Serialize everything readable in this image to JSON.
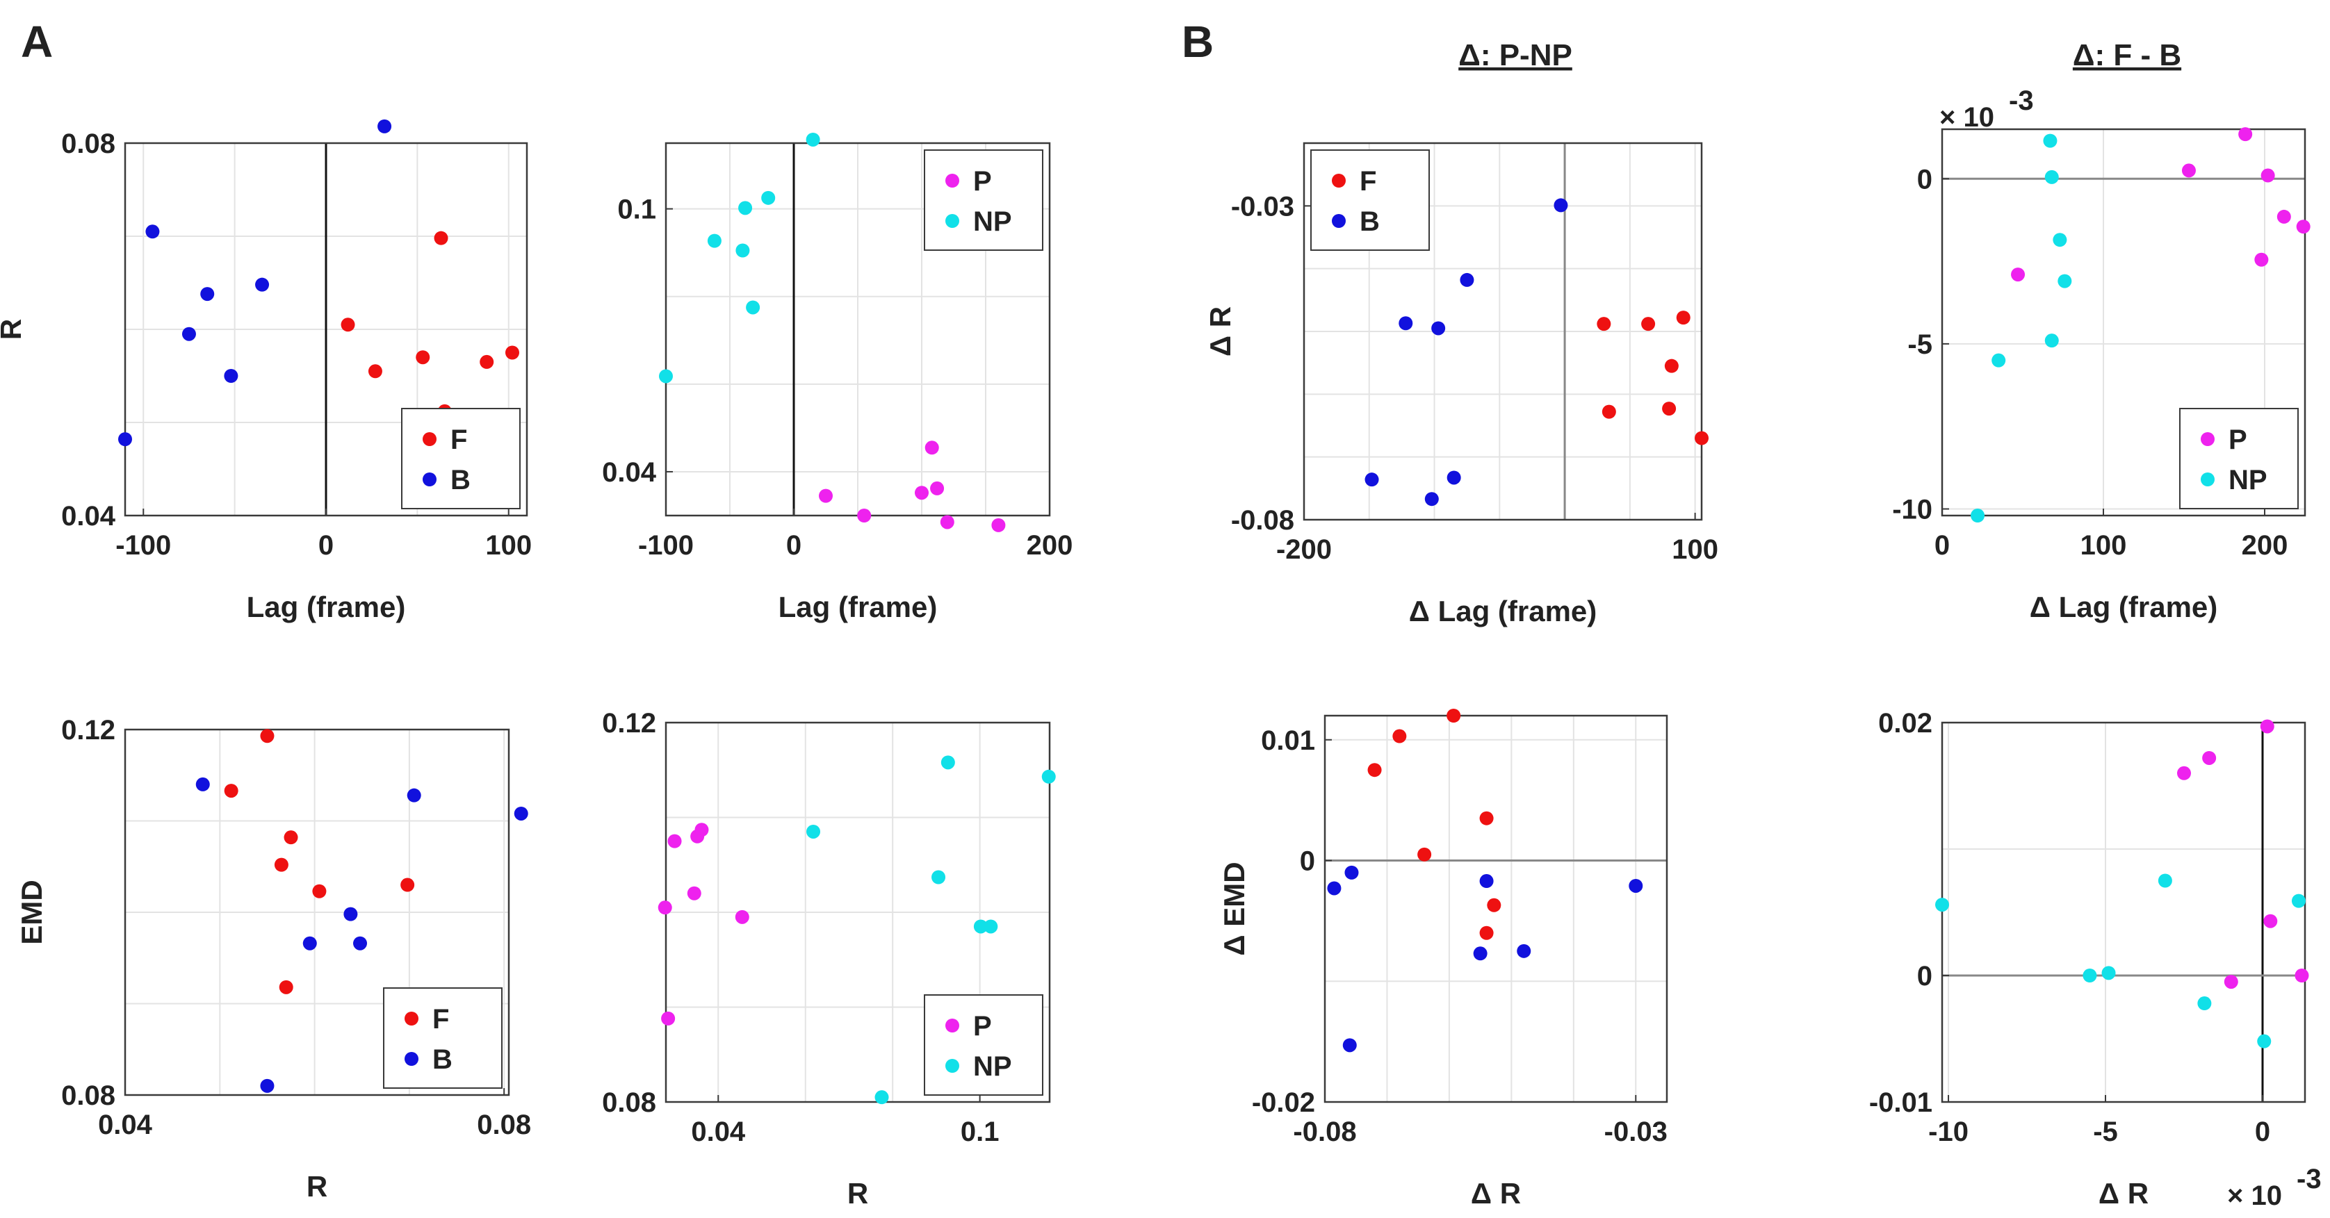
{
  "panel_letters": [
    "A",
    "B"
  ],
  "group_titles": [
    "Δ: P-NP",
    "Δ: F - B"
  ],
  "colors": {
    "F": "#ee1111",
    "B": "#1111dd",
    "P": "#ee22ee",
    "NP": "#11e0e8"
  },
  "chart_data": [
    {
      "id": "a1",
      "type": "scatter",
      "xlabel": "Lag (frame)",
      "ylabel": "R",
      "xlim": [
        -110,
        110
      ],
      "ylim": [
        0.04,
        0.08
      ],
      "xticks": [
        -100,
        0,
        100
      ],
      "xtick_labels": [
        "-100",
        "0",
        "100"
      ],
      "yticks": [
        0.04,
        0.08
      ],
      "ytick_labels": [
        "0.04",
        "0.08"
      ],
      "xgrid": [
        -100,
        -50,
        0,
        50,
        100
      ],
      "ygrid": [
        0.05,
        0.06,
        0.07,
        0.08
      ],
      "vline": 0,
      "legend_position": "bottom-right",
      "series": [
        {
          "name": "F",
          "color": "#ee1111",
          "x": [
            12,
            27,
            53,
            63,
            65,
            88,
            102
          ],
          "y": [
            0.0605,
            0.0555,
            0.057,
            0.0698,
            0.0512,
            0.0565,
            0.0575
          ]
        },
        {
          "name": "B",
          "color": "#1111dd",
          "x": [
            -110,
            -95,
            -75,
            -65,
            -52,
            -35,
            32
          ],
          "y": [
            0.0482,
            0.0705,
            0.0595,
            0.0638,
            0.055,
            0.0648,
            0.0818
          ]
        }
      ]
    },
    {
      "id": "a2",
      "type": "scatter",
      "xlabel": "Lag (frame)",
      "ylabel": "",
      "xlim": [
        -100,
        200
      ],
      "ylim": [
        0.03,
        0.115
      ],
      "xticks": [
        -100,
        0,
        200
      ],
      "xtick_labels": [
        "-100",
        "0",
        "200"
      ],
      "yticks": [
        0.04,
        0.1
      ],
      "ytick_labels": [
        "0.04",
        "0.1"
      ],
      "xgrid": [
        -100,
        -50,
        0,
        50,
        100,
        150,
        200
      ],
      "ygrid": [
        0.04,
        0.06,
        0.08,
        0.1
      ],
      "vline": 0,
      "legend_position": "top-right",
      "series": [
        {
          "name": "P",
          "color": "#ee22ee",
          "x": [
            25,
            55,
            100,
            108,
            112,
            120,
            160
          ],
          "y": [
            0.0345,
            0.03,
            0.0352,
            0.0455,
            0.0362,
            0.0285,
            0.0278
          ]
        },
        {
          "name": "NP",
          "color": "#11e0e8",
          "x": [
            -100,
            -62,
            -40,
            -38,
            -32,
            -20,
            15
          ],
          "y": [
            0.0618,
            0.0927,
            0.0905,
            0.1002,
            0.0775,
            0.1025,
            0.1158
          ]
        }
      ]
    },
    {
      "id": "a3",
      "type": "scatter",
      "xlabel": "R",
      "ylabel": "EMD",
      "xlim": [
        0.04,
        0.0805
      ],
      "ylim": [
        0.08,
        0.12
      ],
      "xticks": [
        0.04,
        0.08
      ],
      "xtick_labels": [
        "0.04",
        "0.08"
      ],
      "yticks": [
        0.08,
        0.12
      ],
      "ytick_labels": [
        "0.08",
        "0.12"
      ],
      "xgrid": [
        0.05,
        0.06,
        0.07,
        0.08
      ],
      "ygrid": [
        0.09,
        0.1,
        0.11,
        0.12
      ],
      "legend_position": "bottom-right",
      "series": [
        {
          "name": "F",
          "color": "#ee1111",
          "x": [
            0.0512,
            0.055,
            0.0565,
            0.0575,
            0.057,
            0.0605,
            0.0698
          ],
          "y": [
            0.1133,
            0.1193,
            0.1052,
            0.1082,
            0.0918,
            0.1023,
            0.103
          ]
        },
        {
          "name": "B",
          "color": "#1111dd",
          "x": [
            0.0482,
            0.055,
            0.0595,
            0.0638,
            0.0648,
            0.0705,
            0.0818
          ],
          "y": [
            0.114,
            0.081,
            0.0966,
            0.0998,
            0.0966,
            0.1128,
            0.1108
          ]
        }
      ]
    },
    {
      "id": "a4",
      "type": "scatter",
      "xlabel": "R",
      "ylabel": "",
      "xlim": [
        0.028,
        0.116
      ],
      "ylim": [
        0.08,
        0.12
      ],
      "xticks": [
        0.04,
        0.1
      ],
      "xtick_labels": [
        "0.04",
        "0.1"
      ],
      "yticks": [
        0.08,
        0.12
      ],
      "ytick_labels": [
        "0.08",
        "0.12"
      ],
      "xgrid": [
        0.04,
        0.06,
        0.08,
        0.1
      ],
      "ygrid": [
        0.09,
        0.1,
        0.11,
        0.12
      ],
      "legend_position": "bottom-right",
      "series": [
        {
          "name": "P",
          "color": "#ee22ee",
          "x": [
            0.0278,
            0.0285,
            0.03,
            0.0345,
            0.0352,
            0.0362,
            0.0455
          ],
          "y": [
            0.1005,
            0.0888,
            0.1075,
            0.102,
            0.108,
            0.1087,
            0.0995
          ]
        },
        {
          "name": "NP",
          "color": "#11e0e8",
          "x": [
            0.0618,
            0.0775,
            0.0905,
            0.0927,
            0.1002,
            0.1025,
            0.1158
          ],
          "y": [
            0.1085,
            0.0805,
            0.1037,
            0.1158,
            0.0985,
            0.0985,
            0.1143
          ]
        }
      ]
    },
    {
      "id": "b1",
      "type": "scatter",
      "xlabel": "Δ Lag (frame)",
      "ylabel": "Δ R",
      "xlim": [
        -200,
        105
      ],
      "ylim": [
        -0.08,
        -0.02
      ],
      "xticks": [
        -200,
        100
      ],
      "xtick_labels": [
        "-200",
        "100"
      ],
      "yticks": [
        -0.08,
        -0.03
      ],
      "ytick_labels": [
        "-0.08",
        "-0.03"
      ],
      "xgrid": [
        -200,
        -150,
        -100,
        -50,
        0,
        50,
        100
      ],
      "ygrid": [
        -0.07,
        -0.06,
        -0.05,
        -0.04,
        -0.03
      ],
      "vline": 0,
      "legend_position": "top-left",
      "series": [
        {
          "name": "F",
          "color": "#ee1111",
          "x": [
            30,
            34,
            64,
            80,
            82,
            91,
            105
          ],
          "y": [
            -0.0488,
            -0.0628,
            -0.0488,
            -0.0623,
            -0.0555,
            -0.0478,
            -0.067
          ]
        },
        {
          "name": "B",
          "color": "#1111dd",
          "x": [
            -148,
            -122,
            -102,
            -97,
            -85,
            -75,
            -3
          ],
          "y": [
            -0.0736,
            -0.0487,
            -0.0767,
            -0.0495,
            -0.0733,
            -0.0418,
            -0.0299
          ]
        }
      ]
    },
    {
      "id": "b2",
      "type": "scatter",
      "xlabel": "Δ R",
      "ylabel": "Δ EMD",
      "xlim": [
        -0.08,
        -0.025
      ],
      "ylim": [
        -0.02,
        0.012
      ],
      "xticks": [
        -0.08,
        -0.03
      ],
      "xtick_labels": [
        "-0.08",
        "-0.03"
      ],
      "yticks": [
        -0.02,
        0,
        0.01
      ],
      "ytick_labels": [
        "-0.02",
        "0",
        "0.01"
      ],
      "xgrid": [
        -0.07,
        -0.06,
        -0.05,
        -0.04,
        -0.03
      ],
      "ygrid": [
        -0.01,
        0,
        0.01
      ],
      "hline": 0,
      "legend_position": "none",
      "series": [
        {
          "name": "F",
          "color": "#ee1111",
          "x": [
            -0.072,
            -0.068,
            -0.064,
            -0.0593,
            -0.054,
            -0.054,
            -0.0528
          ],
          "y": [
            0.0075,
            0.0103,
            0.0005,
            0.012,
            0.0035,
            -0.006,
            -0.0037
          ]
        },
        {
          "name": "B",
          "color": "#1111dd",
          "x": [
            -0.0785,
            -0.0757,
            -0.076,
            -0.055,
            -0.054,
            -0.048,
            -0.03
          ],
          "y": [
            -0.0023,
            -0.001,
            -0.0153,
            -0.0077,
            -0.0017,
            -0.0075,
            -0.0021
          ]
        }
      ]
    },
    {
      "id": "b3",
      "type": "scatter",
      "xlabel": "Δ Lag (frame)",
      "ylabel": "",
      "y_exponent": "× 10",
      "y_exponent_power": "-3",
      "xlim": [
        0,
        225
      ],
      "ylim": [
        -10.2,
        1.5
      ],
      "xticks": [
        0,
        100,
        200
      ],
      "xtick_labels": [
        "0",
        "100",
        "200"
      ],
      "yticks": [
        -10,
        -5,
        0
      ],
      "ytick_labels": [
        "-10",
        "-5",
        "0"
      ],
      "xgrid": [
        0,
        100,
        200
      ],
      "ygrid": [
        -10,
        -5,
        0
      ],
      "hline": 0,
      "legend_position": "bottom-right",
      "series": [
        {
          "name": "P",
          "color": "#ee22ee",
          "x": [
            47,
            153,
            188,
            198,
            202,
            212,
            224
          ],
          "y": [
            -2.9,
            0.25,
            1.35,
            -2.45,
            0.1,
            -1.15,
            -1.45
          ]
        },
        {
          "name": "NP",
          "color": "#11e0e8",
          "x": [
            22,
            35,
            67,
            68,
            68,
            73,
            76
          ],
          "y": [
            -10.2,
            -5.5,
            1.15,
            0.05,
            -4.9,
            -1.85,
            -3.1
          ]
        }
      ]
    },
    {
      "id": "b4",
      "type": "scatter",
      "xlabel": "Δ R",
      "ylabel": "",
      "x_exponent": "× 10",
      "x_exponent_power": "-3",
      "xlim": [
        -10.2,
        1.35
      ],
      "ylim": [
        -0.01,
        0.02
      ],
      "xticks": [
        -10,
        -5,
        0
      ],
      "xtick_labels": [
        "-10",
        "-5",
        "0"
      ],
      "yticks": [
        -0.01,
        0,
        0.02
      ],
      "ytick_labels": [
        "-0.01",
        "0",
        "0.02"
      ],
      "xgrid": [
        -10,
        -5,
        0
      ],
      "ygrid": [
        -0.01,
        0,
        0.01,
        0.02
      ],
      "vline": 0,
      "hline": 0,
      "legend_position": "none",
      "series": [
        {
          "name": "P",
          "color": "#ee22ee",
          "x": [
            -2.5,
            -1.7,
            -1.0,
            0.15,
            0.25,
            1.25
          ],
          "y": [
            0.016,
            0.0172,
            -0.0005,
            0.0197,
            0.0043,
            0.0
          ]
        },
        {
          "name": "NP",
          "color": "#11e0e8",
          "x": [
            -10.2,
            -5.5,
            -4.9,
            -3.1,
            -1.85,
            0.05,
            1.15
          ],
          "y": [
            0.0056,
            0.0,
            0.0002,
            0.0075,
            -0.0022,
            -0.0052,
            0.0059
          ]
        }
      ]
    }
  ]
}
